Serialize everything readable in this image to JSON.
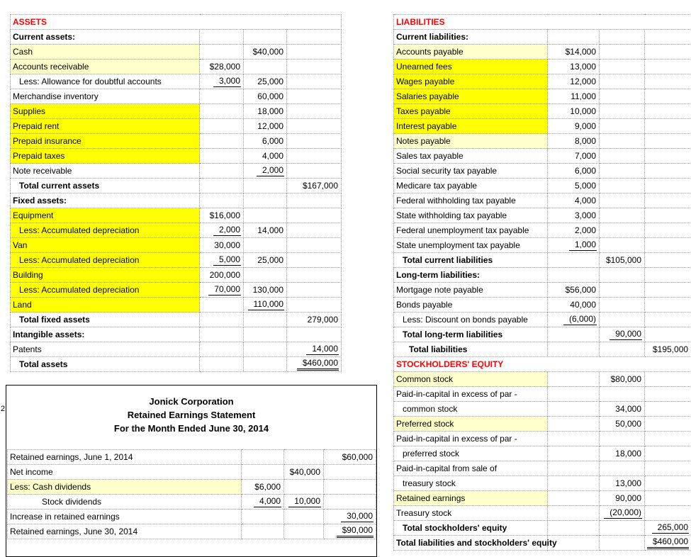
{
  "colors": {
    "title_red": "#FF0000",
    "highlight_bright": "#FFFF00",
    "highlight_pale": "#FFFFCC",
    "gridline": "#9C9C9C"
  },
  "assets_table": {
    "columns": [
      267,
      62,
      61,
      77
    ],
    "rows": [
      {
        "label": "ASSETS",
        "bold": true,
        "red": true,
        "span": true
      },
      {
        "label": "Current assets:",
        "bold": true
      },
      {
        "label": "Cash",
        "hl": "pale",
        "cells": [
          null,
          {
            "v": "$40,000"
          },
          null
        ]
      },
      {
        "label": "Accounts receivable",
        "hl": "pale",
        "cells": [
          {
            "v": "$28,000"
          },
          null,
          null
        ]
      },
      {
        "label": "Less: Allowance for doubtful accounts",
        "indent": 1,
        "cells": [
          {
            "v": "3,000",
            "u": "single"
          },
          {
            "v": "25,000"
          },
          null
        ]
      },
      {
        "label": "Merchandise inventory",
        "cells": [
          null,
          {
            "v": "60,000"
          },
          null
        ]
      },
      {
        "label": "Supplies",
        "hl": "bright",
        "cells": [
          null,
          {
            "v": "18,000"
          },
          null
        ]
      },
      {
        "label": "Prepaid rent",
        "hl": "bright",
        "cells": [
          null,
          {
            "v": "12,000"
          },
          null
        ]
      },
      {
        "label": "Prepaid insurance",
        "hl": "bright",
        "cells": [
          null,
          {
            "v": "6,000"
          },
          null
        ]
      },
      {
        "label": "Prepaid taxes",
        "hl": "bright",
        "cells": [
          null,
          {
            "v": "4,000"
          },
          null
        ]
      },
      {
        "label": "Note receivable",
        "cells": [
          null,
          {
            "v": "2,000",
            "u": "single"
          },
          null
        ]
      },
      {
        "label": "Total current assets",
        "bold": true,
        "indent": 1,
        "cells": [
          null,
          null,
          {
            "v": "$167,000"
          }
        ]
      },
      {
        "label": "Fixed assets:",
        "bold": true
      },
      {
        "label": "Equipment",
        "hl": "bright",
        "cells": [
          {
            "v": "$16,000"
          },
          null,
          null
        ]
      },
      {
        "label": "Less: Accumulated depreciation",
        "hl": "bright",
        "indent": 1,
        "cells": [
          {
            "v": "2,000",
            "u": "single"
          },
          {
            "v": "14,000"
          },
          null
        ]
      },
      {
        "label": "Van",
        "hl": "bright",
        "cells": [
          {
            "v": "30,000"
          },
          null,
          null
        ]
      },
      {
        "label": "Less: Accumulated depreciation",
        "hl": "bright",
        "indent": 1,
        "cells": [
          {
            "v": "5,000",
            "u": "single"
          },
          {
            "v": "25,000"
          },
          null
        ]
      },
      {
        "label": "Building",
        "hl": "bright",
        "cells": [
          {
            "v": "200,000"
          },
          null,
          null
        ]
      },
      {
        "label": "Less: Accumulated depreciation",
        "hl": "bright",
        "indent": 1,
        "cells": [
          {
            "v": "70,000",
            "u": "single"
          },
          {
            "v": "130,000"
          },
          null
        ]
      },
      {
        "label": "Land",
        "hl": "bright",
        "cells": [
          null,
          {
            "v": "110,000",
            "u": "single"
          },
          null
        ]
      },
      {
        "label": "Total fixed assets",
        "bold": true,
        "indent": 1,
        "cells": [
          null,
          null,
          {
            "v": "279,000"
          }
        ]
      },
      {
        "label": "Intangible assets:",
        "bold": true
      },
      {
        "label": "Patents",
        "cells": [
          null,
          null,
          {
            "v": "14,000",
            "u": "single"
          }
        ]
      },
      {
        "label": "Total assets",
        "bold": true,
        "indent": 1,
        "cells": [
          null,
          null,
          {
            "v": "$460,000",
            "u": "double"
          }
        ]
      }
    ]
  },
  "liabilities_equity_table": {
    "columns": [
      217,
      73,
      64,
      66
    ],
    "rows": [
      {
        "label": "LIABILITIES",
        "bold": true,
        "red": true,
        "center": true,
        "span": true
      },
      {
        "label": "Current liabilities:",
        "bold": true
      },
      {
        "label": "Accounts payable",
        "hl": "pale",
        "cells": [
          {
            "v": "$14,000"
          },
          null,
          null
        ]
      },
      {
        "label": "Unearned fees",
        "hl": "bright",
        "cells": [
          {
            "v": "13,000"
          },
          null,
          null
        ]
      },
      {
        "label": "Wages payable",
        "hl": "bright",
        "cells": [
          {
            "v": "12,000"
          },
          null,
          null
        ]
      },
      {
        "label": "Salaries payable",
        "hl": "bright",
        "cells": [
          {
            "v": "11,000"
          },
          null,
          null
        ]
      },
      {
        "label": "Taxes payable",
        "hl": "bright",
        "cells": [
          {
            "v": "10,000"
          },
          null,
          null
        ]
      },
      {
        "label": "Interest payable",
        "hl": "bright",
        "cells": [
          {
            "v": "9,000"
          },
          null,
          null
        ]
      },
      {
        "label": "Notes payable",
        "hl": "pale",
        "cells": [
          {
            "v": "8,000"
          },
          null,
          null
        ]
      },
      {
        "label": "Sales tax payable",
        "cells": [
          {
            "v": "7,000"
          },
          null,
          null
        ]
      },
      {
        "label": "Social security tax payable",
        "cells": [
          {
            "v": "6,000"
          },
          null,
          null
        ]
      },
      {
        "label": "Medicare tax payable",
        "cells": [
          {
            "v": "5,000"
          },
          null,
          null
        ]
      },
      {
        "label": "Federal withholding tax payable",
        "cells": [
          {
            "v": "4,000"
          },
          null,
          null
        ]
      },
      {
        "label": "State withholding tax payable",
        "cells": [
          {
            "v": "3,000"
          },
          null,
          null
        ]
      },
      {
        "label": "Federal unemployment tax payable",
        "cells": [
          {
            "v": "2,000"
          },
          null,
          null
        ]
      },
      {
        "label": "State unemployment tax payable",
        "cells": [
          {
            "v": "1,000",
            "u": "single"
          },
          null,
          null
        ]
      },
      {
        "label": "Total current liabilities",
        "bold": true,
        "indent": 1,
        "cells": [
          null,
          {
            "v": "$105,000"
          },
          null
        ]
      },
      {
        "label": "Long-term liabilities:",
        "bold": true
      },
      {
        "label": "Mortgage note payable",
        "cells": [
          {
            "v": "$56,000"
          },
          null,
          null
        ]
      },
      {
        "label": "Bonds payable",
        "cells": [
          {
            "v": "40,000"
          },
          null,
          null
        ]
      },
      {
        "label": "Less: Discount on bonds payable",
        "indent": 1,
        "cells": [
          {
            "v": "(6,000)",
            "u": "single"
          },
          null,
          null
        ]
      },
      {
        "label": "Total long-term liabilities",
        "bold": true,
        "indent": 1,
        "cells": [
          null,
          {
            "v": "90,000",
            "u": "single"
          },
          null
        ]
      },
      {
        "label": "Total liabilities",
        "bold": true,
        "indent": 2,
        "cells": [
          null,
          null,
          {
            "v": "$195,000"
          }
        ]
      },
      {
        "label": "STOCKHOLDERS' EQUITY",
        "bold": true,
        "red": true,
        "center": true,
        "span": true
      },
      {
        "label": "Common stock",
        "hl": "pale",
        "cells": [
          null,
          {
            "v": "$80,000"
          },
          null
        ]
      },
      {
        "label": "Paid-in-capital in excess of par -"
      },
      {
        "label": "common stock",
        "indent": 1,
        "cells": [
          null,
          {
            "v": "34,000"
          },
          null
        ]
      },
      {
        "label": "Preferred stock",
        "hl": "pale",
        "cells": [
          null,
          {
            "v": "50,000"
          },
          null
        ]
      },
      {
        "label": "Paid-in-capital in excess of par -"
      },
      {
        "label": "preferred stock",
        "indent": 1,
        "cells": [
          null,
          {
            "v": "18,000"
          },
          null
        ]
      },
      {
        "label": "Paid-in-capital from sale of"
      },
      {
        "label": "treasury stock",
        "indent": 1,
        "cells": [
          null,
          {
            "v": "13,000"
          },
          null
        ]
      },
      {
        "label": "Retained earnings",
        "hl": "pale",
        "cells": [
          null,
          {
            "v": "90,000"
          },
          null
        ]
      },
      {
        "label": "Treasury stock",
        "cells": [
          null,
          {
            "v": "(20,000)",
            "u": "single"
          },
          null
        ]
      },
      {
        "label": "Total stockholders' equity",
        "bold": true,
        "indent": 1,
        "cells": [
          null,
          null,
          {
            "v": "265,000",
            "u": "single"
          }
        ]
      },
      {
        "label": "Total liabilities and stockholders' equity",
        "bold": true,
        "cells": [
          null,
          null,
          {
            "v": "$460,000",
            "u": "double"
          }
        ]
      }
    ]
  },
  "retained_earnings": {
    "row_number": "2",
    "title_lines": [
      "Jonick Corporation",
      "Retained Earnings Statement",
      "For the Month Ended June 30, 2014"
    ],
    "table": {
      "columns": [
        330,
        60,
        56,
        74
      ],
      "rows": [
        {
          "label": "Retained earnings, June 1, 2014",
          "cells": [
            null,
            null,
            {
              "v": "$60,000"
            }
          ]
        },
        {
          "label": "Net income",
          "cells": [
            null,
            {
              "v": "$40,000"
            },
            null
          ]
        },
        {
          "label": "Less: Cash dividends",
          "hl": "pale",
          "cells": [
            {
              "v": "$6,000"
            },
            null,
            null
          ]
        },
        {
          "label": "Stock dividends",
          "indent": 5,
          "cells": [
            {
              "v": "4,000",
              "u": "single"
            },
            {
              "v": "10,000",
              "u": "single"
            },
            null
          ]
        },
        {
          "label": "Increase in retained earnings",
          "cells": [
            null,
            null,
            {
              "v": "30,000",
              "u": "single"
            }
          ]
        },
        {
          "label": "Retained earnings, June 30, 2014",
          "cells": [
            null,
            null,
            {
              "v": "$90,000",
              "u": "double"
            }
          ]
        }
      ]
    }
  }
}
